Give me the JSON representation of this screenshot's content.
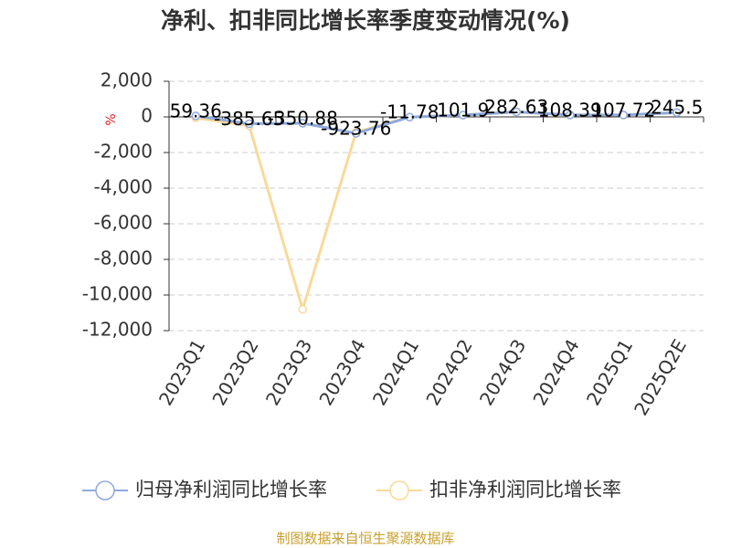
{
  "chart_data": {
    "type": "line",
    "title": "净利、扣非同比增长率季度变动情况(%)",
    "y_label": "%",
    "categories": [
      "2023Q1",
      "2023Q2",
      "2023Q3",
      "2023Q4",
      "2024Q1",
      "2024Q2",
      "2024Q3",
      "2024Q4",
      "2025Q1",
      "2025Q2E"
    ],
    "series": [
      {
        "name": "归母净利润同比增长率",
        "color": "#8eaadc",
        "values": [
          59.36,
          -385.65,
          -350.88,
          -923.76,
          -11.78,
          101.9,
          282.63,
          108.39,
          107.72,
          245.5
        ],
        "show_labels": true
      },
      {
        "name": "扣非净利润同比增长率",
        "color": "#f9d99a",
        "values": [
          -50,
          -500,
          -10800,
          -850,
          -11.78,
          101.9,
          282.63,
          108.39,
          107.72,
          245.5
        ],
        "show_labels": false
      }
    ],
    "ylim": [
      -12000,
      2000
    ],
    "yticks": [
      {
        "value": 2000,
        "label": "2,000"
      },
      0,
      {
        "value": -2000,
        "label": "-2,000"
      },
      {
        "value": -4000,
        "label": "-4,000"
      },
      {
        "value": -6000,
        "label": "-6,000"
      },
      {
        "value": -8000,
        "label": "-8,000"
      },
      {
        "value": -10000,
        "label": "-10,000"
      },
      {
        "value": -12000,
        "label": "-12,000"
      }
    ],
    "grid": true,
    "source": "制图数据来自恒生聚源数据库"
  }
}
